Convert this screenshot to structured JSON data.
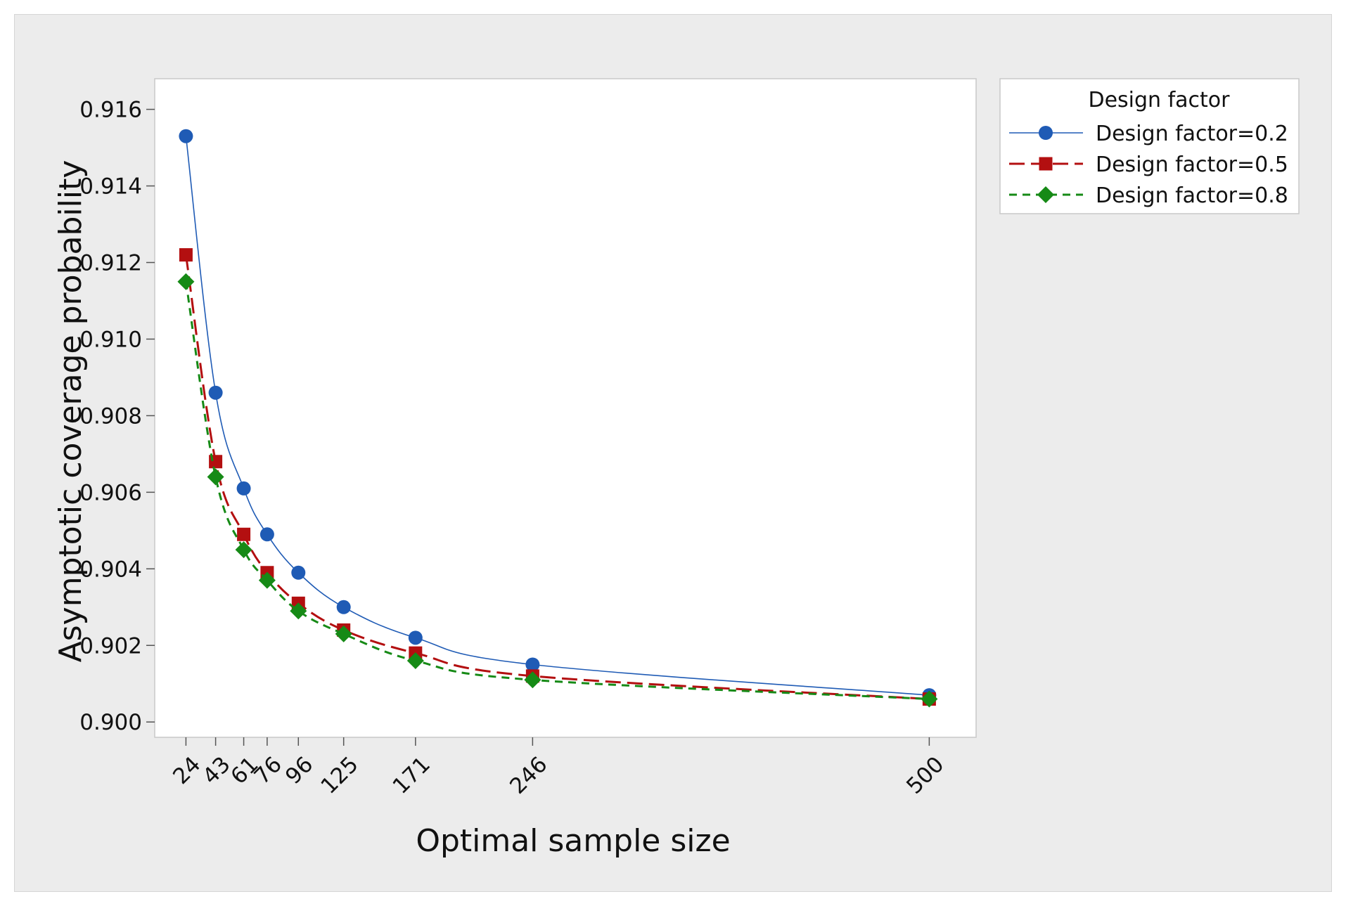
{
  "chart_data": {
    "type": "line",
    "title": "",
    "xlabel": "Optimal sample size",
    "ylabel": "Asymptotic coverage probability",
    "x": [
      24,
      43,
      61,
      76,
      96,
      125,
      171,
      246,
      500
    ],
    "x_tick_labels": [
      "24",
      "43",
      "61",
      "76",
      "96",
      "125",
      "171",
      "246",
      "500"
    ],
    "y_ticks": [
      0.9,
      0.902,
      0.904,
      0.906,
      0.908,
      0.91,
      0.912,
      0.914,
      0.916
    ],
    "y_tick_labels": [
      "0.900",
      "0.902",
      "0.904",
      "0.906",
      "0.908",
      "0.910",
      "0.912",
      "0.914",
      "0.916"
    ],
    "ylim": [
      0.8996,
      0.9168
    ],
    "xlim": [
      4,
      530
    ],
    "grid": false,
    "legend_position": "right",
    "legend_title": "Design factor",
    "series": [
      {
        "name": "Design factor=0.2",
        "color": "#1f5bb5",
        "marker": "circle",
        "line_style": "solid",
        "values": [
          0.9153,
          0.9086,
          0.9061,
          0.9049,
          0.9039,
          0.903,
          0.9022,
          0.9015,
          0.9007
        ]
      },
      {
        "name": "Design factor=0.5",
        "color": "#b30f10",
        "marker": "square",
        "line_style": "long-dash",
        "values": [
          0.9122,
          0.9068,
          0.9049,
          0.9039,
          0.9031,
          0.9024,
          0.9018,
          0.9012,
          0.9006
        ]
      },
      {
        "name": "Design factor=0.8",
        "color": "#168a16",
        "marker": "diamond",
        "line_style": "short-dash",
        "values": [
          0.9115,
          0.9064,
          0.9045,
          0.9037,
          0.9029,
          0.9023,
          0.9016,
          0.9011,
          0.9006
        ]
      }
    ]
  }
}
